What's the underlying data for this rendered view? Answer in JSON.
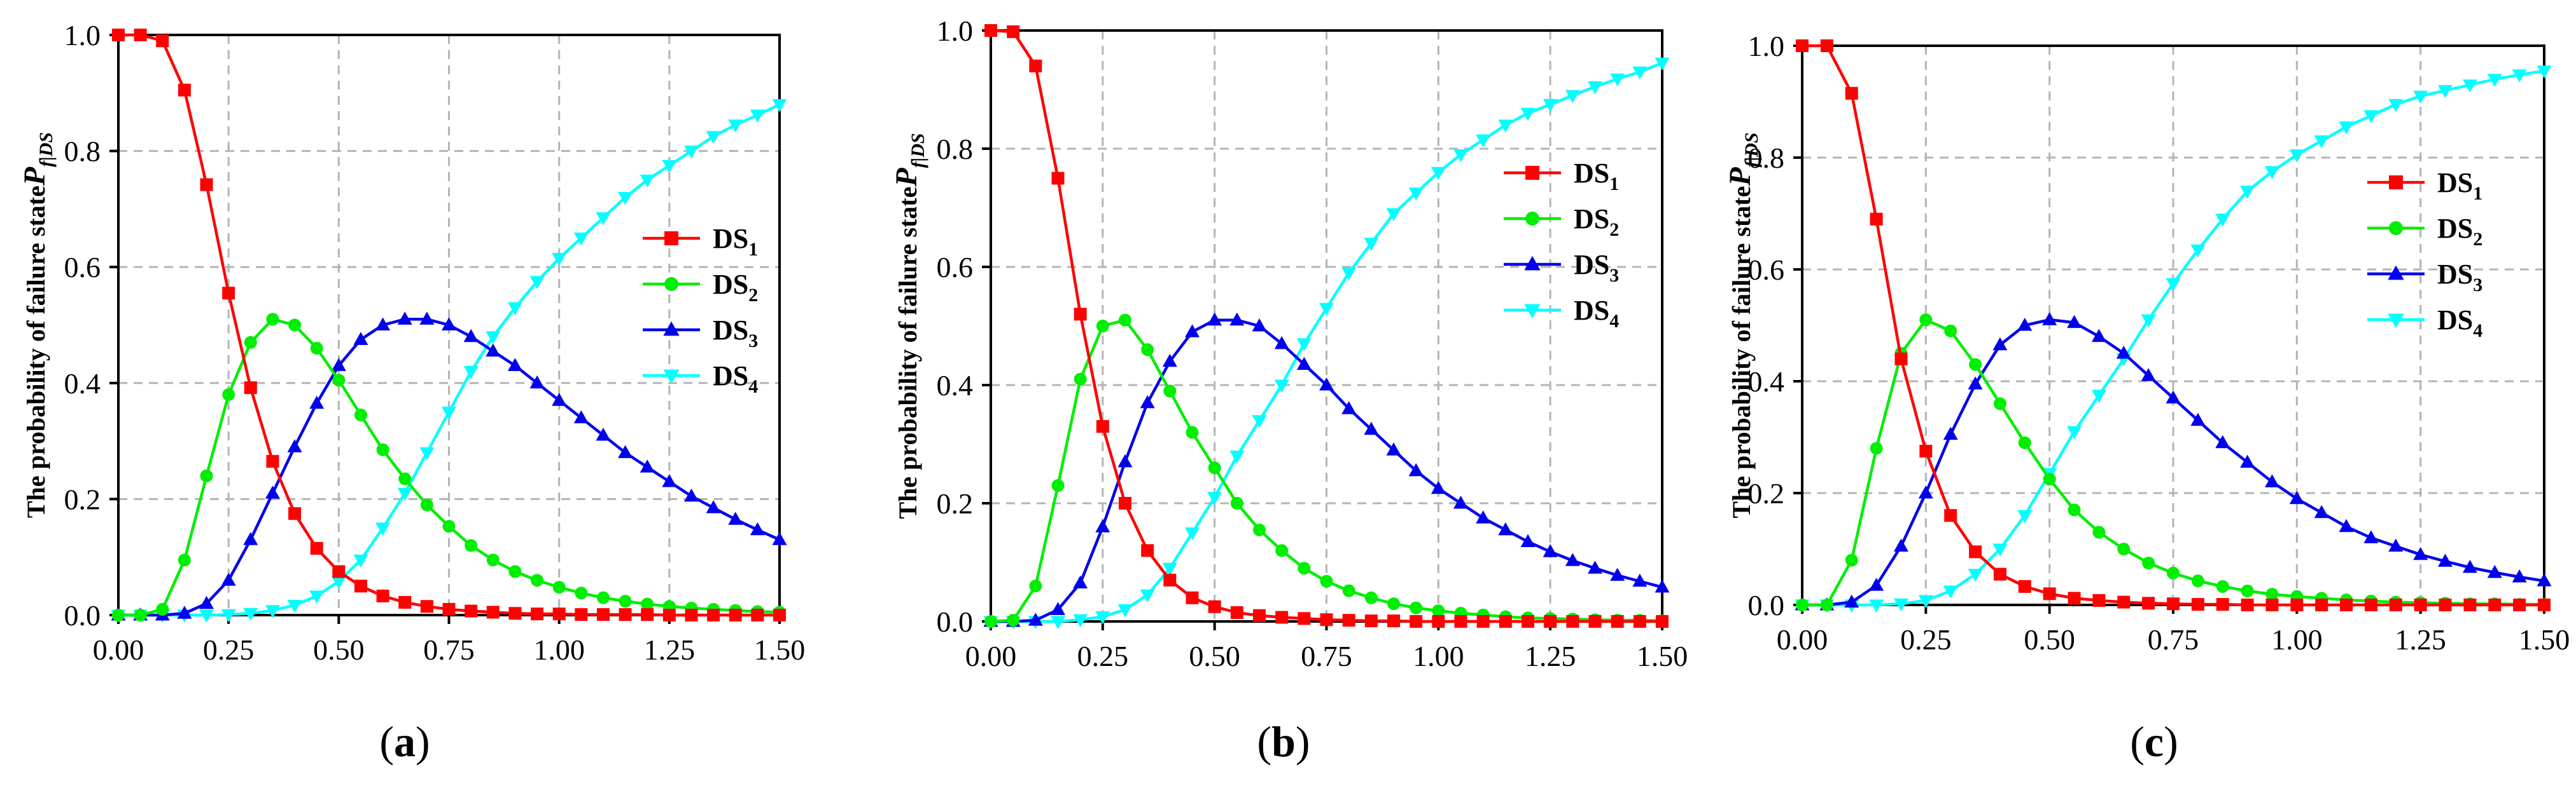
{
  "figure": {
    "panel_letters": [
      "a",
      "b",
      "c"
    ],
    "ylabel_text": "The probability of failure state",
    "ylabel_symbol": "P",
    "ylabel_subscript": "f|DS"
  },
  "colors": {
    "DS1": "#ff0000",
    "DS2": "#00ee00",
    "DS3": "#0000ee",
    "DS4": "#00ffff",
    "grid": "#b4b4b4"
  },
  "chart_data": [
    {
      "type": "line",
      "panel": "a",
      "xlim": [
        0,
        1.5
      ],
      "ylim": [
        0,
        1.0
      ],
      "xticks": [
        "0.00",
        "0.25",
        "0.50",
        "0.75",
        "1.00",
        "1.25",
        "1.50"
      ],
      "yticks": [
        "0.0",
        "0.2",
        "0.4",
        "0.6",
        "0.8",
        "1.0"
      ],
      "grid": true,
      "legend_position": "center-right",
      "series": [
        {
          "name": "DS",
          "sub": "1",
          "key": "DS1",
          "marker": "square",
          "x": [
            0,
            0.05,
            0.1,
            0.15,
            0.2,
            0.25,
            0.3,
            0.35,
            0.4,
            0.45,
            0.5,
            0.55,
            0.6,
            0.65,
            0.7,
            0.75,
            0.8,
            0.85,
            0.9,
            0.95,
            1.0,
            1.05,
            1.1,
            1.15,
            1.2,
            1.25,
            1.3,
            1.35,
            1.4,
            1.45,
            1.5
          ],
          "y": [
            1.0,
            1.0,
            0.99,
            0.905,
            0.742,
            0.555,
            0.392,
            0.265,
            0.175,
            0.115,
            0.075,
            0.05,
            0.033,
            0.022,
            0.015,
            0.01,
            0.007,
            0.005,
            0.003,
            0.002,
            0.002,
            0.001,
            0.001,
            0.001,
            0.001,
            0,
            0,
            0,
            0,
            0,
            0
          ]
        },
        {
          "name": "DS",
          "sub": "2",
          "key": "DS2",
          "marker": "circle",
          "x": [
            0,
            0.05,
            0.1,
            0.15,
            0.2,
            0.25,
            0.3,
            0.35,
            0.4,
            0.45,
            0.5,
            0.55,
            0.6,
            0.65,
            0.7,
            0.75,
            0.8,
            0.85,
            0.9,
            0.95,
            1.0,
            1.05,
            1.1,
            1.15,
            1.2,
            1.25,
            1.3,
            1.35,
            1.4,
            1.45,
            1.5
          ],
          "y": [
            0,
            0,
            0.01,
            0.095,
            0.24,
            0.38,
            0.47,
            0.51,
            0.5,
            0.46,
            0.405,
            0.345,
            0.285,
            0.235,
            0.19,
            0.153,
            0.12,
            0.095,
            0.075,
            0.06,
            0.048,
            0.038,
            0.03,
            0.024,
            0.019,
            0.015,
            0.012,
            0.01,
            0.008,
            0.006,
            0.005
          ]
        },
        {
          "name": "DS",
          "sub": "3",
          "key": "DS3",
          "marker": "triangle-up",
          "x": [
            0,
            0.05,
            0.1,
            0.15,
            0.2,
            0.25,
            0.3,
            0.35,
            0.4,
            0.45,
            0.5,
            0.55,
            0.6,
            0.65,
            0.7,
            0.75,
            0.8,
            0.85,
            0.9,
            0.95,
            1.0,
            1.05,
            1.1,
            1.15,
            1.2,
            1.25,
            1.3,
            1.35,
            1.4,
            1.45,
            1.5
          ],
          "y": [
            0,
            0,
            0,
            0.003,
            0.02,
            0.06,
            0.13,
            0.21,
            0.29,
            0.365,
            0.43,
            0.475,
            0.5,
            0.51,
            0.51,
            0.5,
            0.48,
            0.455,
            0.43,
            0.4,
            0.37,
            0.34,
            0.31,
            0.28,
            0.255,
            0.23,
            0.205,
            0.185,
            0.165,
            0.147,
            0.13
          ]
        },
        {
          "name": "DS",
          "sub": "4",
          "key": "DS4",
          "marker": "triangle-down",
          "x": [
            0,
            0.05,
            0.1,
            0.15,
            0.2,
            0.25,
            0.3,
            0.35,
            0.4,
            0.45,
            0.5,
            0.55,
            0.6,
            0.65,
            0.7,
            0.75,
            0.8,
            0.85,
            0.9,
            0.95,
            1.0,
            1.05,
            1.1,
            1.15,
            1.2,
            1.25,
            1.3,
            1.35,
            1.4,
            1.45,
            1.5
          ],
          "y": [
            0,
            0,
            0,
            0,
            0,
            0.001,
            0.003,
            0.008,
            0.017,
            0.033,
            0.058,
            0.095,
            0.15,
            0.21,
            0.28,
            0.35,
            0.42,
            0.48,
            0.53,
            0.575,
            0.615,
            0.65,
            0.685,
            0.72,
            0.75,
            0.775,
            0.8,
            0.825,
            0.845,
            0.862,
            0.88
          ]
        }
      ]
    },
    {
      "type": "line",
      "panel": "b",
      "xlim": [
        0,
        1.5
      ],
      "ylim": [
        0,
        1.0
      ],
      "xticks": [
        "0.00",
        "0.25",
        "0.50",
        "0.75",
        "1.00",
        "1.25",
        "1.50"
      ],
      "yticks": [
        "0.0",
        "0.2",
        "0.4",
        "0.6",
        "0.8",
        "1.0"
      ],
      "grid": true,
      "legend_position": "top-right",
      "series": [
        {
          "name": "DS",
          "sub": "1",
          "key": "DS1",
          "marker": "square",
          "x": [
            0,
            0.05,
            0.1,
            0.15,
            0.2,
            0.25,
            0.3,
            0.35,
            0.4,
            0.45,
            0.5,
            0.55,
            0.6,
            0.65,
            0.7,
            0.75,
            0.8,
            0.85,
            0.9,
            0.95,
            1.0,
            1.05,
            1.1,
            1.15,
            1.2,
            1.25,
            1.3,
            1.35,
            1.4,
            1.45,
            1.5
          ],
          "y": [
            1.0,
            0.998,
            0.94,
            0.75,
            0.52,
            0.33,
            0.2,
            0.12,
            0.07,
            0.04,
            0.025,
            0.015,
            0.01,
            0.007,
            0.005,
            0.003,
            0.002,
            0.001,
            0.001,
            0,
            0,
            0,
            0,
            0,
            0,
            0,
            0,
            0,
            0,
            0,
            0
          ]
        },
        {
          "name": "DS",
          "sub": "2",
          "key": "DS2",
          "marker": "circle",
          "x": [
            0,
            0.05,
            0.1,
            0.15,
            0.2,
            0.25,
            0.3,
            0.35,
            0.4,
            0.45,
            0.5,
            0.55,
            0.6,
            0.65,
            0.7,
            0.75,
            0.8,
            0.85,
            0.9,
            0.95,
            1.0,
            1.05,
            1.1,
            1.15,
            1.2,
            1.25,
            1.3,
            1.35,
            1.4,
            1.45,
            1.5
          ],
          "y": [
            0,
            0.002,
            0.06,
            0.23,
            0.41,
            0.5,
            0.51,
            0.46,
            0.39,
            0.32,
            0.26,
            0.2,
            0.155,
            0.12,
            0.09,
            0.068,
            0.052,
            0.04,
            0.03,
            0.023,
            0.018,
            0.014,
            0.011,
            0.008,
            0.006,
            0.005,
            0.004,
            0.003,
            0.002,
            0.002,
            0.001
          ]
        },
        {
          "name": "DS",
          "sub": "3",
          "key": "DS3",
          "marker": "triangle-up",
          "x": [
            0,
            0.05,
            0.1,
            0.15,
            0.2,
            0.25,
            0.3,
            0.35,
            0.4,
            0.45,
            0.5,
            0.55,
            0.6,
            0.65,
            0.7,
            0.75,
            0.8,
            0.85,
            0.9,
            0.95,
            1.0,
            1.05,
            1.1,
            1.15,
            1.2,
            1.25,
            1.3,
            1.35,
            1.4,
            1.45,
            1.5
          ],
          "y": [
            0,
            0,
            0.002,
            0.02,
            0.065,
            0.16,
            0.27,
            0.37,
            0.44,
            0.49,
            0.51,
            0.51,
            0.5,
            0.47,
            0.435,
            0.4,
            0.36,
            0.325,
            0.29,
            0.255,
            0.225,
            0.2,
            0.175,
            0.155,
            0.135,
            0.118,
            0.103,
            0.09,
            0.078,
            0.068,
            0.058
          ]
        },
        {
          "name": "DS",
          "sub": "4",
          "key": "DS4",
          "marker": "triangle-down",
          "x": [
            0,
            0.05,
            0.1,
            0.15,
            0.2,
            0.25,
            0.3,
            0.35,
            0.4,
            0.45,
            0.5,
            0.55,
            0.6,
            0.65,
            0.7,
            0.75,
            0.8,
            0.85,
            0.9,
            0.95,
            1.0,
            1.05,
            1.1,
            1.15,
            1.2,
            1.25,
            1.3,
            1.35,
            1.4,
            1.45,
            1.5
          ],
          "y": [
            0,
            0,
            0,
            0,
            0.003,
            0.008,
            0.02,
            0.045,
            0.09,
            0.15,
            0.21,
            0.28,
            0.34,
            0.4,
            0.47,
            0.53,
            0.59,
            0.64,
            0.69,
            0.725,
            0.76,
            0.79,
            0.815,
            0.84,
            0.86,
            0.875,
            0.89,
            0.905,
            0.918,
            0.93,
            0.945
          ]
        }
      ]
    },
    {
      "type": "line",
      "panel": "c",
      "xlim": [
        0,
        1.5
      ],
      "ylim": [
        0,
        1.0
      ],
      "xticks": [
        "0.00",
        "0.25",
        "0.50",
        "0.75",
        "1.00",
        "1.25",
        "1.50"
      ],
      "yticks": [
        "0.0",
        "0.2",
        "0.4",
        "0.6",
        "0.8",
        "1.0"
      ],
      "grid": true,
      "legend_position": "top-right",
      "series": [
        {
          "name": "DS",
          "sub": "1",
          "key": "DS1",
          "marker": "square",
          "x": [
            0,
            0.05,
            0.1,
            0.15,
            0.2,
            0.25,
            0.3,
            0.35,
            0.4,
            0.45,
            0.5,
            0.55,
            0.6,
            0.65,
            0.7,
            0.75,
            0.8,
            0.85,
            0.9,
            0.95,
            1.0,
            1.05,
            1.1,
            1.15,
            1.2,
            1.25,
            1.3,
            1.35,
            1.4,
            1.45,
            1.5
          ],
          "y": [
            1.0,
            1.0,
            0.915,
            0.69,
            0.44,
            0.275,
            0.16,
            0.095,
            0.055,
            0.033,
            0.02,
            0.012,
            0.008,
            0.005,
            0.003,
            0.002,
            0.001,
            0.001,
            0,
            0,
            0,
            0,
            0,
            0,
            0,
            0,
            0,
            0,
            0,
            0,
            0
          ]
        },
        {
          "name": "DS",
          "sub": "2",
          "key": "DS2",
          "marker": "circle",
          "x": [
            0,
            0.05,
            0.1,
            0.15,
            0.2,
            0.25,
            0.3,
            0.35,
            0.4,
            0.45,
            0.5,
            0.55,
            0.6,
            0.65,
            0.7,
            0.75,
            0.8,
            0.85,
            0.9,
            0.95,
            1.0,
            1.05,
            1.1,
            1.15,
            1.2,
            1.25,
            1.3,
            1.35,
            1.4,
            1.45,
            1.5
          ],
          "y": [
            0,
            0,
            0.08,
            0.28,
            0.45,
            0.51,
            0.49,
            0.43,
            0.36,
            0.29,
            0.225,
            0.17,
            0.13,
            0.1,
            0.075,
            0.057,
            0.043,
            0.033,
            0.025,
            0.019,
            0.015,
            0.012,
            0.009,
            0.007,
            0.005,
            0.004,
            0.003,
            0.002,
            0.002,
            0.001,
            0.001
          ]
        },
        {
          "name": "DS",
          "sub": "3",
          "key": "DS3",
          "marker": "triangle-up",
          "x": [
            0,
            0.05,
            0.1,
            0.15,
            0.2,
            0.25,
            0.3,
            0.35,
            0.4,
            0.45,
            0.5,
            0.55,
            0.6,
            0.65,
            0.7,
            0.75,
            0.8,
            0.85,
            0.9,
            0.95,
            1.0,
            1.05,
            1.1,
            1.15,
            1.2,
            1.25,
            1.3,
            1.35,
            1.4,
            1.45,
            1.5
          ],
          "y": [
            0,
            0,
            0.005,
            0.035,
            0.105,
            0.2,
            0.305,
            0.395,
            0.465,
            0.5,
            0.51,
            0.505,
            0.48,
            0.45,
            0.41,
            0.37,
            0.33,
            0.29,
            0.255,
            0.22,
            0.19,
            0.165,
            0.14,
            0.12,
            0.105,
            0.09,
            0.078,
            0.067,
            0.058,
            0.05,
            0.043
          ]
        },
        {
          "name": "DS",
          "sub": "4",
          "key": "DS4",
          "marker": "triangle-down",
          "x": [
            0,
            0.05,
            0.1,
            0.15,
            0.2,
            0.25,
            0.3,
            0.35,
            0.4,
            0.45,
            0.5,
            0.55,
            0.6,
            0.65,
            0.7,
            0.75,
            0.8,
            0.85,
            0.9,
            0.95,
            1.0,
            1.05,
            1.1,
            1.15,
            1.2,
            1.25,
            1.3,
            1.35,
            1.4,
            1.45,
            1.5
          ],
          "y": [
            0,
            0,
            0,
            0,
            0.002,
            0.008,
            0.025,
            0.055,
            0.1,
            0.16,
            0.235,
            0.31,
            0.375,
            0.44,
            0.51,
            0.575,
            0.635,
            0.69,
            0.74,
            0.775,
            0.805,
            0.83,
            0.855,
            0.875,
            0.895,
            0.91,
            0.92,
            0.93,
            0.94,
            0.948,
            0.955
          ]
        }
      ]
    }
  ]
}
